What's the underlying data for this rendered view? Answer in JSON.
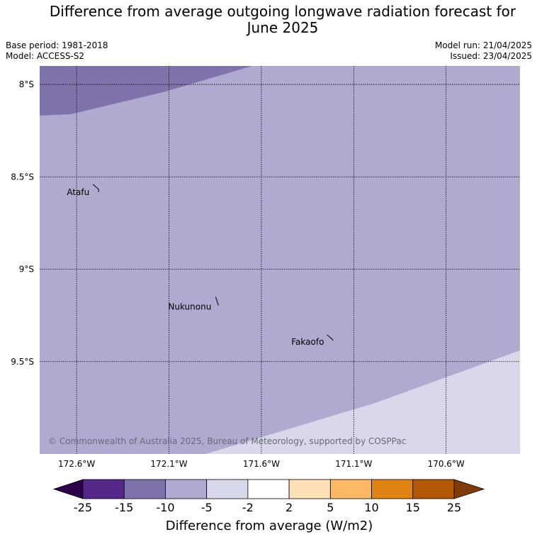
{
  "title_lines": [
    "Difference from average outgoing longwave radiation forecast for",
    "June 2025"
  ],
  "meta": {
    "base_period": "Base period: 1981-2018",
    "model": "Model: ACCESS-S2",
    "model_run": "Model run: 21/04/2025",
    "issued": "Issued: 23/04/2025"
  },
  "map": {
    "lon_range": [
      -172.8,
      -170.2
    ],
    "lat_range": [
      -10.0,
      -7.9
    ],
    "lon_ticks": [
      {
        "value": -172.6,
        "label": "172.6°W"
      },
      {
        "value": -172.1,
        "label": "172.1°W"
      },
      {
        "value": -171.6,
        "label": "171.6°W"
      },
      {
        "value": -171.1,
        "label": "171.1°W"
      },
      {
        "value": -170.6,
        "label": "170.6°W"
      }
    ],
    "lat_ticks": [
      {
        "value": -8.0,
        "label": "8°S"
      },
      {
        "value": -8.5,
        "label": "8.5°S"
      },
      {
        "value": -9.0,
        "label": "9°S"
      },
      {
        "value": -9.5,
        "label": "9.5°S"
      }
    ],
    "places": [
      {
        "name": "Atafu",
        "lon": -172.5,
        "lat": -8.56
      },
      {
        "name": "Nukunonu",
        "lon": -171.84,
        "lat": -9.18
      },
      {
        "name": "Fakaofo",
        "lon": -171.23,
        "lat": -9.37
      }
    ],
    "regions": [
      {
        "name": "-15 to -10",
        "color": "#8073ac"
      },
      {
        "name": "-10 to -5",
        "color": "#b0aad1"
      },
      {
        "name": "-5 to -2",
        "color": "#d8d8ea"
      }
    ],
    "copyright": "© Commonwealth of Australia 2025, Bureau of Meteorology, supported by COSPPac"
  },
  "colorbar": {
    "title": "Difference from average (W/m2)",
    "ticks": [
      "-25",
      "-15",
      "-10",
      "-5",
      "-2",
      "2",
      "5",
      "10",
      "15",
      "25"
    ],
    "under_color": "#2d004b",
    "over_color": "#7f3b08",
    "colors": [
      "#542788",
      "#8073ac",
      "#b0aad1",
      "#d8d8eb",
      "#ffffff",
      "#fee0b6",
      "#fdb863",
      "#e08214",
      "#b35806"
    ]
  }
}
